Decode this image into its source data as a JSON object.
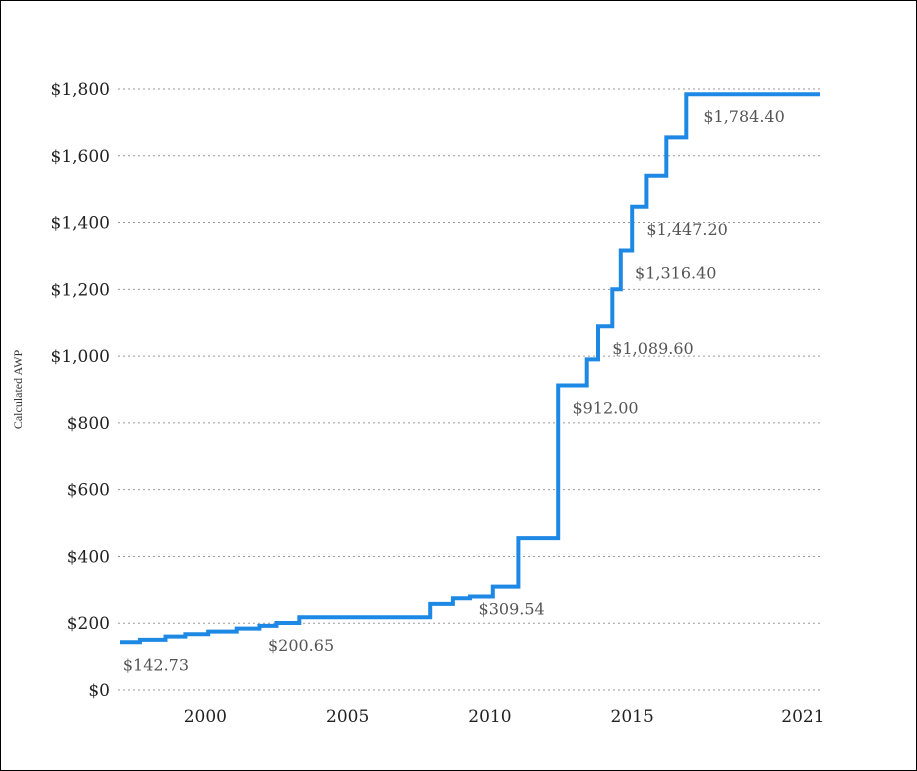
{
  "chart_data": {
    "type": "line",
    "step": true,
    "ylabel": "Calculated AWP",
    "xlabel": "",
    "ylim": [
      0,
      1800
    ],
    "xlim": [
      1997,
      2021.6
    ],
    "y_ticks": [
      0,
      200,
      400,
      600,
      800,
      1000,
      1200,
      1400,
      1600,
      1800
    ],
    "y_tick_labels": [
      "$0",
      "$200",
      "$400",
      "$600",
      "$800",
      "$1,000",
      "$1,200",
      "$1,400",
      "$1,600",
      "$1,800"
    ],
    "x_ticks": [
      2000,
      2005,
      2010,
      2015,
      2021
    ],
    "x_tick_labels": [
      "2000",
      "2005",
      "2010",
      "2015",
      "2021"
    ],
    "grid": "horizontal dotted",
    "line_color": "#1e88e5",
    "series": [
      {
        "points": [
          {
            "x": 1997.0,
            "y": 142.73
          },
          {
            "x": 1997.7,
            "y": 150
          },
          {
            "x": 1998.6,
            "y": 160
          },
          {
            "x": 1999.3,
            "y": 167
          },
          {
            "x": 2000.1,
            "y": 175
          },
          {
            "x": 2001.1,
            "y": 184
          },
          {
            "x": 2001.9,
            "y": 192
          },
          {
            "x": 2002.5,
            "y": 200.65
          },
          {
            "x": 2003.3,
            "y": 218
          },
          {
            "x": 2007.9,
            "y": 258
          },
          {
            "x": 2008.7,
            "y": 275
          },
          {
            "x": 2009.3,
            "y": 280
          },
          {
            "x": 2010.1,
            "y": 309.54
          },
          {
            "x": 2011.0,
            "y": 455
          },
          {
            "x": 2012.4,
            "y": 912.0
          },
          {
            "x": 2013.4,
            "y": 990
          },
          {
            "x": 2013.8,
            "y": 1089.6
          },
          {
            "x": 2014.3,
            "y": 1200
          },
          {
            "x": 2014.6,
            "y": 1316.4
          },
          {
            "x": 2015.0,
            "y": 1447.2
          },
          {
            "x": 2015.5,
            "y": 1540
          },
          {
            "x": 2016.2,
            "y": 1655
          },
          {
            "x": 2016.9,
            "y": 1784.4
          },
          {
            "x": 2021.6,
            "y": 1784.4
          }
        ]
      }
    ],
    "annotations": [
      {
        "text": "$142.73",
        "x": 1997.1,
        "y": 142.73
      },
      {
        "text": "$200.65",
        "x": 2002.2,
        "y": 200.65
      },
      {
        "text": "$309.54",
        "x": 2009.6,
        "y": 309.54
      },
      {
        "text": "$912.00",
        "x": 2012.9,
        "y": 912.0
      },
      {
        "text": "$1,089.60",
        "x": 2014.3,
        "y": 1089.6
      },
      {
        "text": "$1,316.40",
        "x": 2015.1,
        "y": 1316.4
      },
      {
        "text": "$1,447.20",
        "x": 2015.5,
        "y": 1447.2
      },
      {
        "text": "$1,784.40",
        "x": 2017.5,
        "y": 1784.4
      }
    ]
  }
}
